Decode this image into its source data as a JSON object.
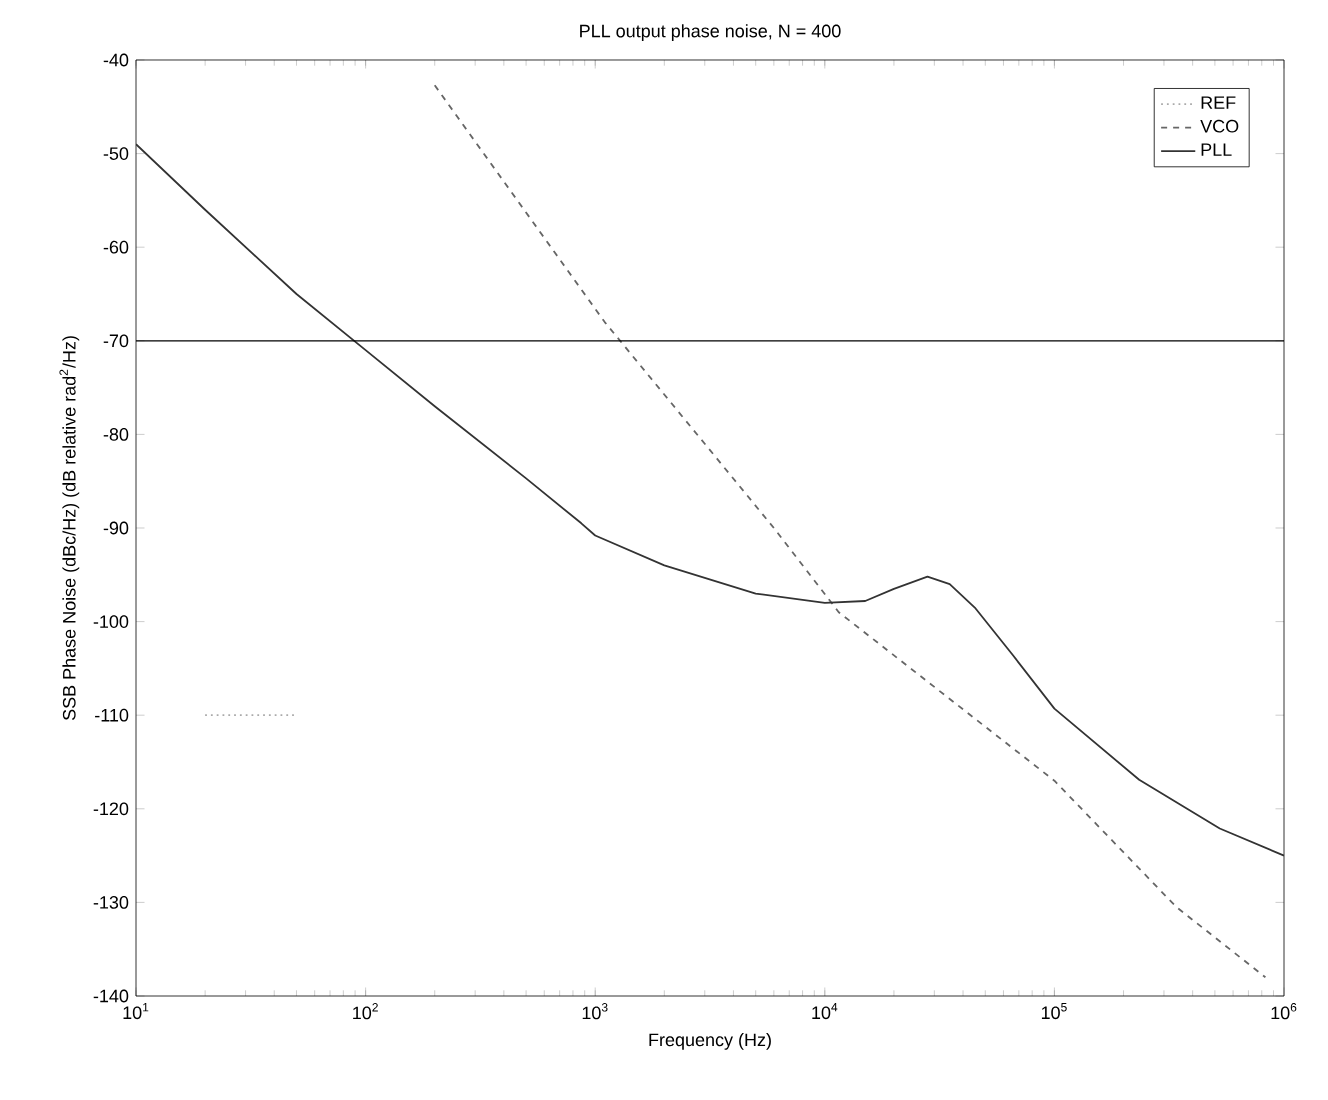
{
  "chart_data": {
    "type": "line",
    "title": "PLL output phase noise, N = 400",
    "xlabel": "Frequency (Hz)",
    "ylabel": "SSB Phase Noise (dBc/Hz) (dB relative rad$^{2}$/Hz)",
    "log": "x",
    "xlim": [
      10,
      1000000
    ],
    "ylim": [
      -140,
      -40
    ],
    "xticks": [
      {
        "value": 10,
        "label": "10$^{1}$"
      },
      {
        "value": 100,
        "label": "10$^{2}$"
      },
      {
        "value": 1000,
        "label": "10$^{3}$"
      },
      {
        "value": 10000,
        "label": "10$^{4}$"
      },
      {
        "value": 100000,
        "label": "10$^{5}$"
      },
      {
        "value": 1000000,
        "label": "10$^{6}$"
      }
    ],
    "yticks": [
      -140,
      -130,
      -120,
      -110,
      -100,
      -90,
      -80,
      -70,
      -60,
      -50,
      -40
    ],
    "legend": "top right",
    "marker": "none",
    "grid": false,
    "ref_lines": [
      {
        "axis": "y",
        "value": -70,
        "color": "#000000"
      }
    ],
    "series": [
      {
        "name": "REF",
        "color": "#aaaaaa",
        "line_style": "dotted",
        "x": [
          20,
          50
        ],
        "values": [
          -110,
          -110
        ]
      },
      {
        "name": "VCO",
        "color": "#666666",
        "line_style": "dashed",
        "x": [
          200,
          1100,
          3000,
          6000,
          11500,
          100000,
          340000,
          830000
        ],
        "values": [
          -42.7,
          -68,
          -81,
          -90,
          -99,
          -117,
          -130.5,
          -138
        ]
      },
      {
        "name": "PLL",
        "color": "#333333",
        "line_style": "solid",
        "x": [
          10,
          20,
          50,
          100,
          200,
          500,
          870,
          1000,
          2000,
          5000,
          10000,
          15000,
          20000,
          28000,
          35000,
          45000,
          66000,
          100000,
          234000,
          525000,
          1000000
        ],
        "values": [
          -49,
          -56,
          -65,
          -71,
          -77,
          -84.7,
          -89.5,
          -90.8,
          -94,
          -97,
          -98,
          -97.8,
          -96.5,
          -95.2,
          -96,
          -98.5,
          -103.6,
          -109.3,
          -116.9,
          -122.1,
          -125
        ]
      }
    ]
  }
}
